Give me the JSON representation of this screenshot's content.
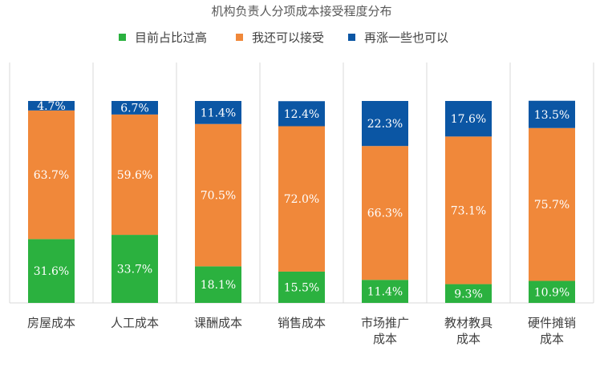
{
  "chart_data": {
    "type": "bar",
    "stacked": true,
    "title": "机构负责人分项成本接受程度分布",
    "legend_position": "top",
    "categories": [
      [
        "房屋成本"
      ],
      [
        "人工成本"
      ],
      [
        "课酬成本"
      ],
      [
        "销售成本"
      ],
      [
        "市场推广",
        "成本"
      ],
      [
        "教材教具",
        "成本"
      ],
      [
        "硬件摊销",
        "成本"
      ]
    ],
    "ylim": [
      0,
      100
    ],
    "series": [
      {
        "name": "目前占比过高",
        "color": "#2bb13f",
        "values": [
          31.6,
          33.7,
          18.1,
          15.5,
          11.4,
          9.3,
          10.9
        ]
      },
      {
        "name": "我还可以接受",
        "color": "#f0883a",
        "values": [
          63.7,
          59.6,
          70.5,
          72.0,
          66.3,
          73.1,
          75.7
        ]
      },
      {
        "name": "再涨一些也可以",
        "color": "#0b56a4",
        "values": [
          4.7,
          6.7,
          11.4,
          12.4,
          22.3,
          17.6,
          13.5
        ]
      }
    ],
    "value_suffix": "%"
  }
}
